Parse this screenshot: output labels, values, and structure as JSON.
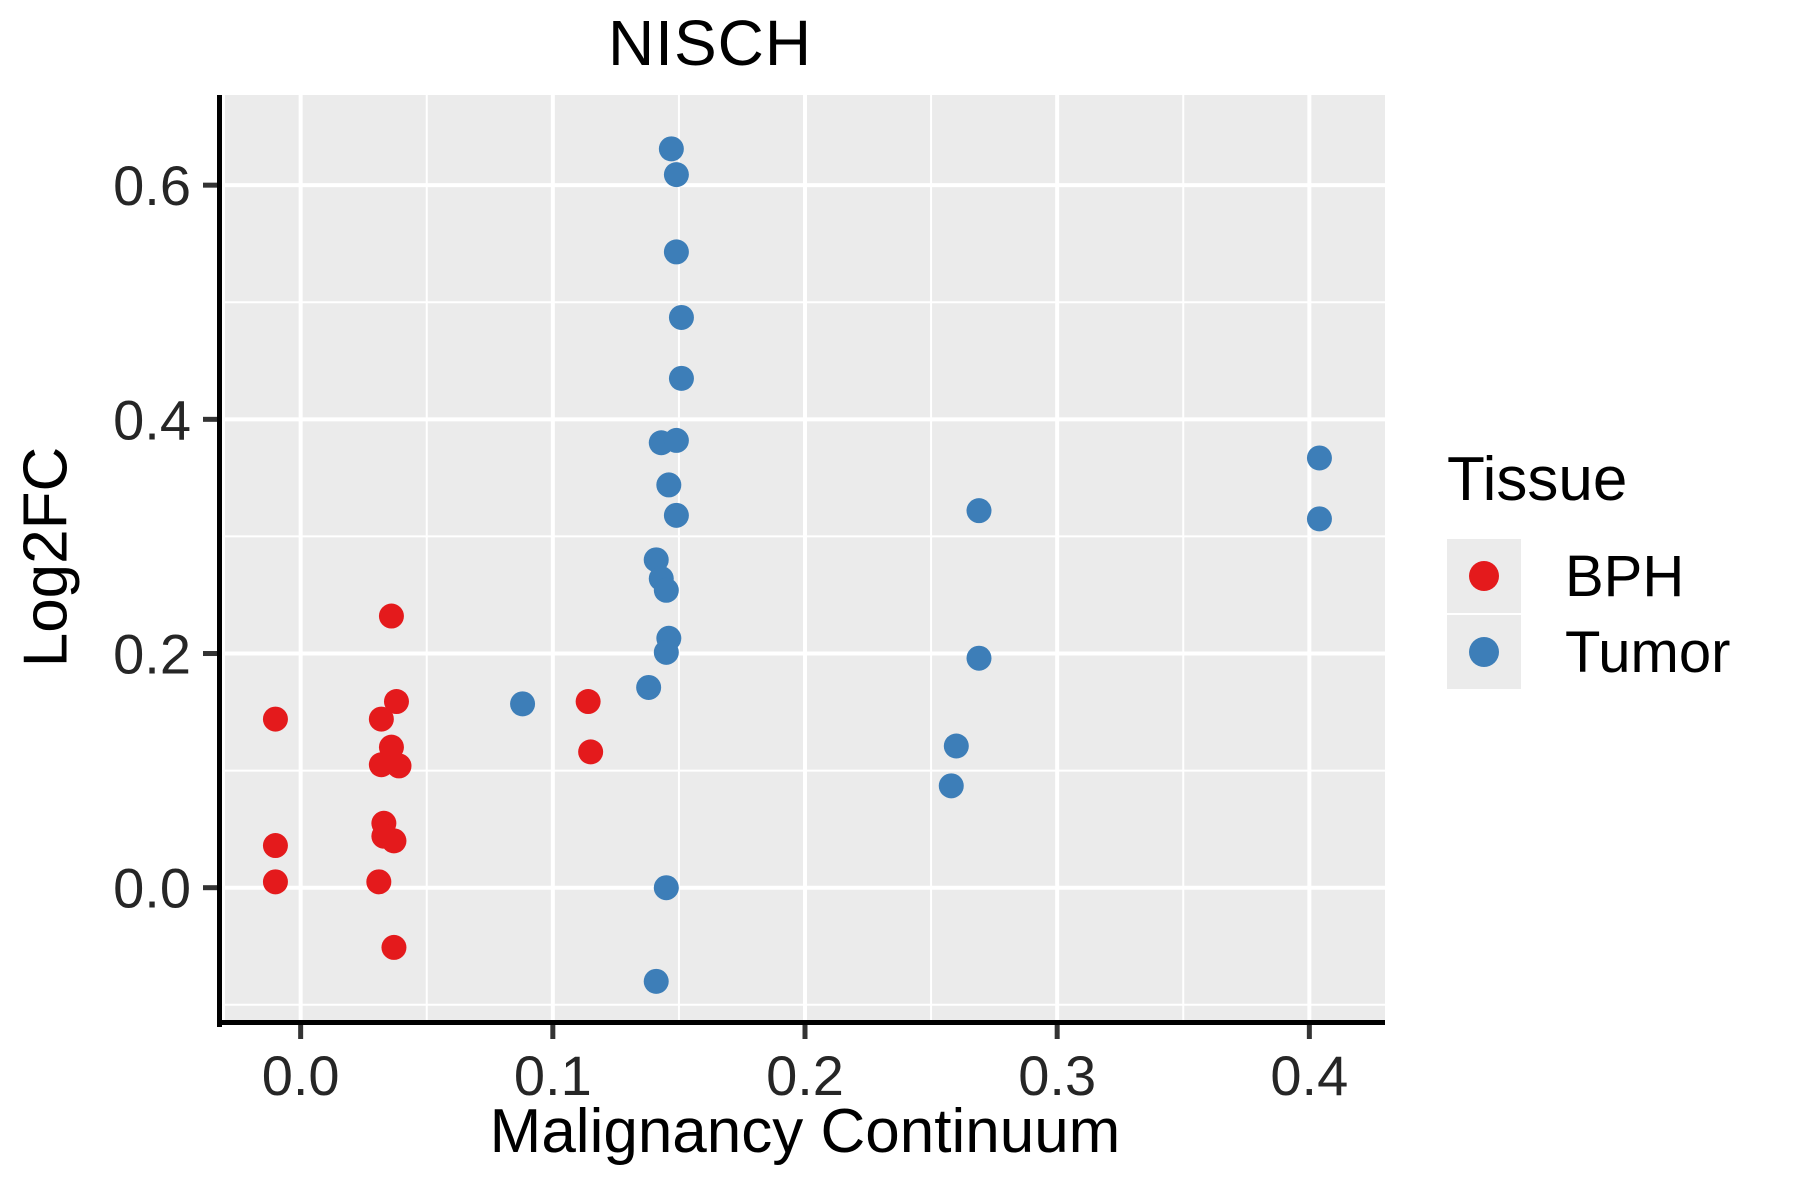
{
  "chart_data": {
    "type": "scatter",
    "title": "NISCH",
    "xlabel": "Malignancy Continuum",
    "ylabel": "Log2FC",
    "xlim": [
      -0.03,
      0.43
    ],
    "ylim": [
      -0.113,
      0.677
    ],
    "x_ticks": [
      0.0,
      0.1,
      0.2,
      0.3,
      0.4
    ],
    "x_tick_labels": [
      "0.0",
      "0.1",
      "0.2",
      "0.3",
      "0.4"
    ],
    "y_ticks": [
      0.0,
      0.2,
      0.4,
      0.6
    ],
    "y_tick_labels": [
      "0.0",
      "0.2",
      "0.4",
      "0.6"
    ],
    "grid": {
      "major": true,
      "minor": true,
      "major_color": "#ffffff",
      "minor_color": "#ffffff"
    },
    "panel_background": "#ebebeb",
    "axis_line_color": "#000000",
    "tick_label_color": "#262626",
    "legend": {
      "title": "Tissue",
      "position": "right",
      "key_background": "#ebebeb"
    },
    "series": [
      {
        "name": "BPH",
        "color": "#e41a1c",
        "points": [
          [
            -0.01,
            0.144
          ],
          [
            -0.01,
            0.036
          ],
          [
            -0.01,
            0.005
          ],
          [
            0.036,
            0.232
          ],
          [
            0.038,
            0.159
          ],
          [
            0.032,
            0.144
          ],
          [
            0.036,
            0.12
          ],
          [
            0.032,
            0.105
          ],
          [
            0.039,
            0.104
          ],
          [
            0.033,
            0.055
          ],
          [
            0.033,
            0.044
          ],
          [
            0.037,
            0.04
          ],
          [
            0.031,
            0.005
          ],
          [
            0.037,
            -0.051
          ],
          [
            0.114,
            0.159
          ],
          [
            0.115,
            0.116
          ]
        ]
      },
      {
        "name": "Tumor",
        "color": "#3d7eb8",
        "points": [
          [
            0.088,
            0.157
          ],
          [
            0.138,
            0.171
          ],
          [
            0.147,
            0.631
          ],
          [
            0.149,
            0.609
          ],
          [
            0.149,
            0.543
          ],
          [
            0.151,
            0.487
          ],
          [
            0.151,
            0.435
          ],
          [
            0.143,
            0.38
          ],
          [
            0.149,
            0.382
          ],
          [
            0.146,
            0.344
          ],
          [
            0.149,
            0.318
          ],
          [
            0.141,
            0.28
          ],
          [
            0.143,
            0.264
          ],
          [
            0.145,
            0.254
          ],
          [
            0.146,
            0.213
          ],
          [
            0.145,
            0.201
          ],
          [
            0.145,
            0.0
          ],
          [
            0.141,
            -0.08
          ],
          [
            0.269,
            0.322
          ],
          [
            0.269,
            0.196
          ],
          [
            0.26,
            0.121
          ],
          [
            0.258,
            0.087
          ],
          [
            0.404,
            0.367
          ],
          [
            0.404,
            0.315
          ]
        ]
      }
    ]
  }
}
